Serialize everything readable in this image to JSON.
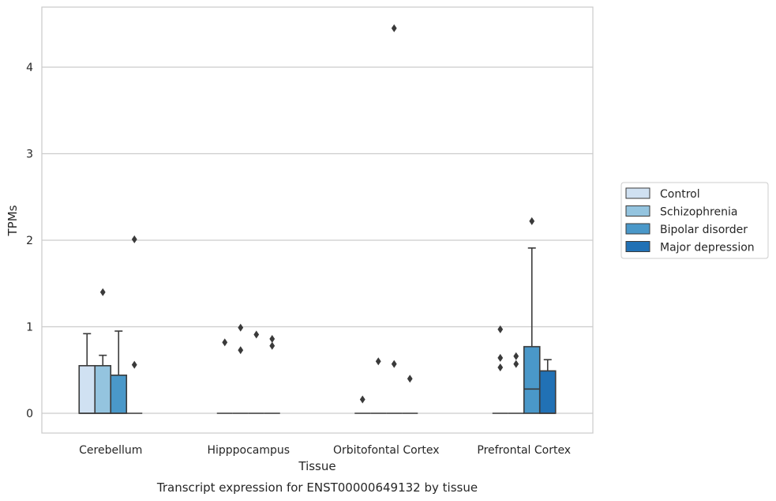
{
  "chart_data": {
    "type": "box",
    "title": "",
    "caption": "Transcript expression for ENST00000649132 by tissue",
    "xlabel": "Tissue",
    "ylabel": "TPMs",
    "ylim": [
      -0.22,
      4.68
    ],
    "yticks": [
      0,
      1,
      2,
      3,
      4
    ],
    "grid": "horizontal",
    "legend_placement": "right",
    "categories": [
      "Cerebellum",
      "Hipppocampus",
      "Orbitofontal Cortex",
      "Prefrontal Cortex"
    ],
    "series": [
      {
        "name": "Control",
        "color": "#d0e1f2",
        "boxes": [
          {
            "q1": 0,
            "median": 0,
            "q3": 0.55,
            "whisker_low": 0,
            "whisker_high": 0.92,
            "outliers": []
          },
          {
            "q1": 0,
            "median": 0,
            "q3": 0,
            "whisker_low": 0,
            "whisker_high": 0,
            "outliers": [
              0.82
            ]
          },
          {
            "q1": 0,
            "median": 0,
            "q3": 0,
            "whisker_low": 0,
            "whisker_high": 0,
            "outliers": [
              0.16
            ]
          },
          {
            "q1": 0,
            "median": 0,
            "q3": 0,
            "whisker_low": 0,
            "whisker_high": 0,
            "outliers": [
              0.97,
              0.64,
              0.53
            ]
          }
        ]
      },
      {
        "name": "Schizophrenia",
        "color": "#94c4df",
        "boxes": [
          {
            "q1": 0,
            "median": 0,
            "q3": 0.55,
            "whisker_low": 0,
            "whisker_high": 0.67,
            "outliers": [
              1.4
            ]
          },
          {
            "q1": 0,
            "median": 0,
            "q3": 0,
            "whisker_low": 0,
            "whisker_high": 0,
            "outliers": [
              0.99,
              0.73
            ]
          },
          {
            "q1": 0,
            "median": 0,
            "q3": 0,
            "whisker_low": 0,
            "whisker_high": 0,
            "outliers": [
              0.6
            ]
          },
          {
            "q1": 0,
            "median": 0,
            "q3": 0,
            "whisker_low": 0,
            "whisker_high": 0,
            "outliers": [
              0.66,
              0.57
            ]
          }
        ]
      },
      {
        "name": "Bipolar disorder",
        "color": "#4a98c9",
        "boxes": [
          {
            "q1": 0,
            "median": 0,
            "q3": 0.44,
            "whisker_low": 0,
            "whisker_high": 0.95,
            "outliers": []
          },
          {
            "q1": 0,
            "median": 0,
            "q3": 0,
            "whisker_low": 0,
            "whisker_high": 0,
            "outliers": [
              0.91
            ]
          },
          {
            "q1": 0,
            "median": 0,
            "q3": 0,
            "whisker_low": 0,
            "whisker_high": 0,
            "outliers": [
              4.45,
              0.57
            ]
          },
          {
            "q1": 0,
            "median": 0.28,
            "q3": 0.77,
            "whisker_low": 0,
            "whisker_high": 1.91,
            "outliers": [
              2.22
            ]
          }
        ]
      },
      {
        "name": "Major depression",
        "color": "#2171b5",
        "boxes": [
          {
            "q1": 0,
            "median": 0,
            "q3": 0,
            "whisker_low": 0,
            "whisker_high": 0,
            "outliers": [
              2.01,
              0.56
            ]
          },
          {
            "q1": 0,
            "median": 0,
            "q3": 0,
            "whisker_low": 0,
            "whisker_high": 0,
            "outliers": [
              0.86,
              0.78
            ]
          },
          {
            "q1": 0,
            "median": 0,
            "q3": 0,
            "whisker_low": 0,
            "whisker_high": 0,
            "outliers": [
              0.4
            ]
          },
          {
            "q1": 0,
            "median": 0,
            "q3": 0.49,
            "whisker_low": 0,
            "whisker_high": 0.62,
            "outliers": []
          }
        ]
      }
    ]
  }
}
